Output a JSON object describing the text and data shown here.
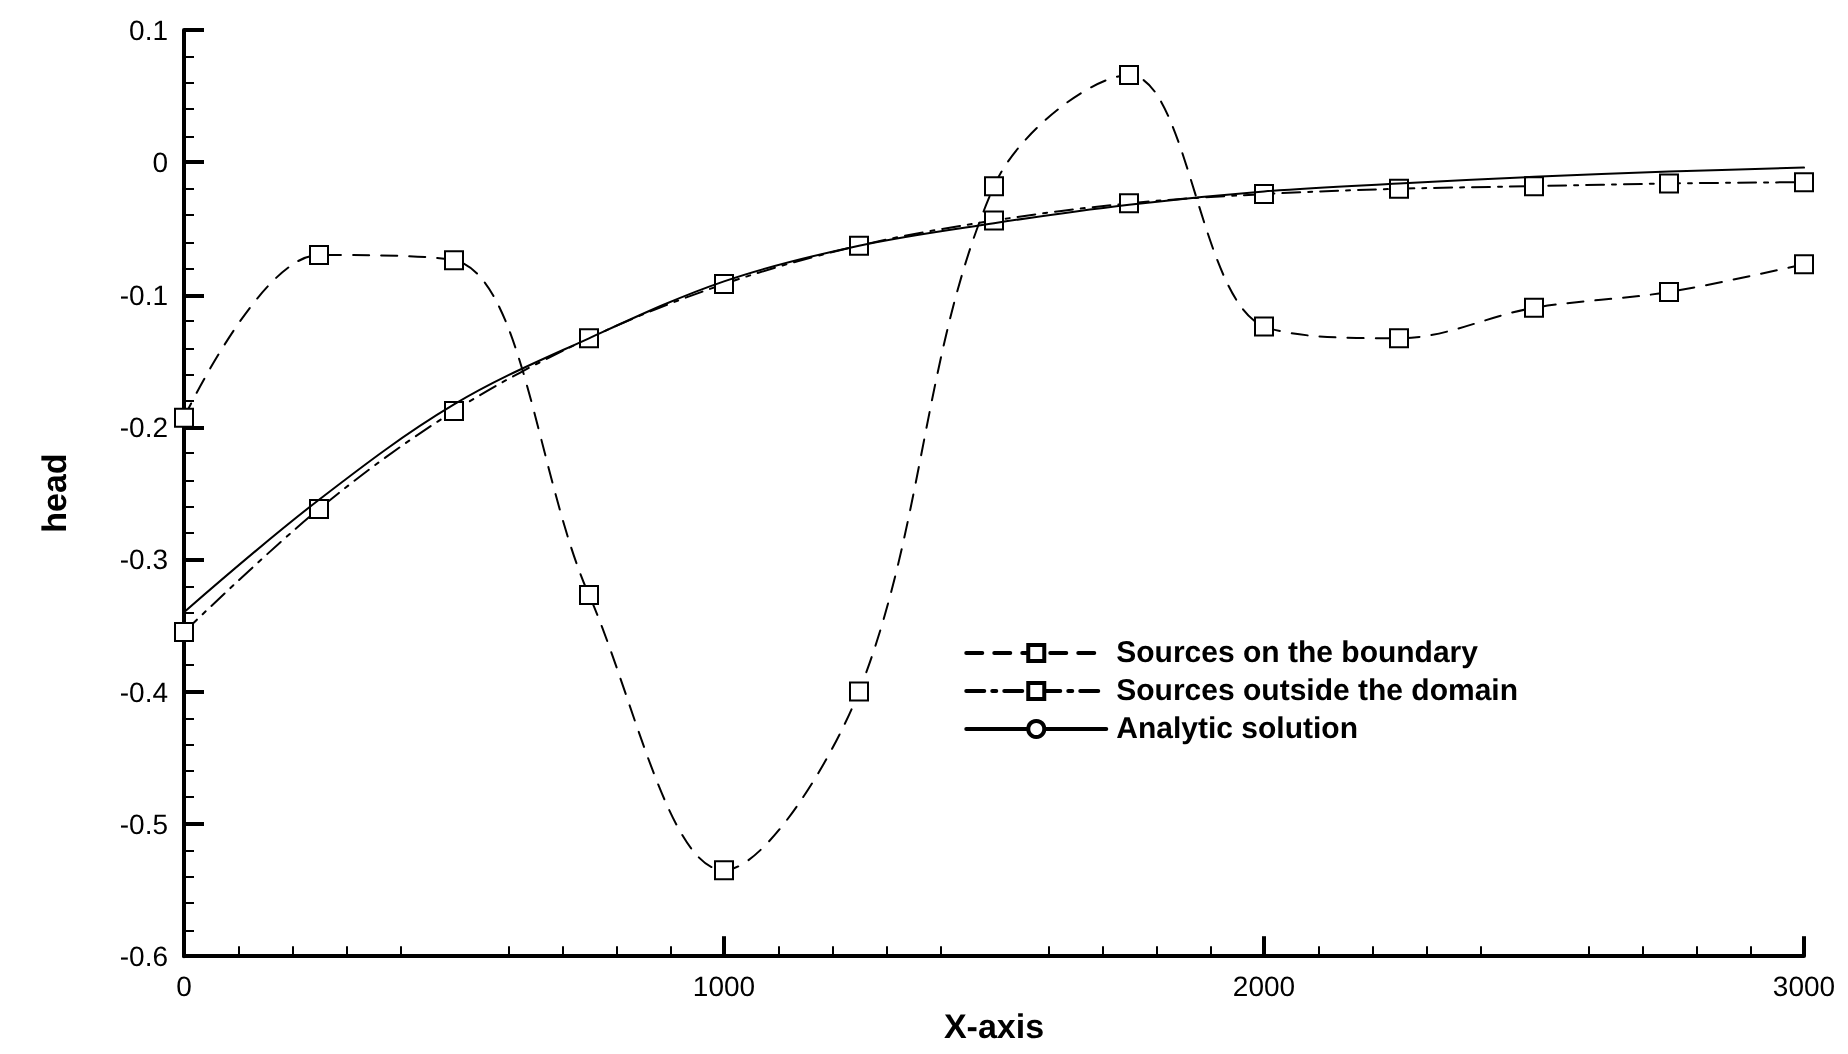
{
  "chart_data": {
    "type": "line",
    "xlabel": "X-axis",
    "ylabel": "head",
    "x": [
      0,
      250,
      500,
      750,
      1000,
      1250,
      1500,
      1750,
      2000,
      2250,
      2500,
      2750,
      3000
    ],
    "series": [
      {
        "name": "Sources on the boundary",
        "color": "#000000",
        "marker": "square",
        "line_style": "dashed",
        "values": [
          -0.193,
          -0.07,
          -0.074,
          -0.327,
          -0.535,
          -0.4,
          -0.018,
          0.066,
          -0.124,
          -0.133,
          -0.11,
          -0.098,
          -0.077
        ]
      },
      {
        "name": "Sources outside the domain",
        "color": "#000000",
        "marker": "square",
        "line_style": "dashdot",
        "values": [
          -0.355,
          -0.262,
          -0.188,
          -0.133,
          -0.092,
          -0.063,
          -0.044,
          -0.031,
          -0.024,
          -0.02,
          -0.018,
          -0.016,
          -0.015
        ]
      },
      {
        "name": "Analytic solution",
        "color": "#000000",
        "marker": "none",
        "line_style": "solid",
        "values": [
          -0.34,
          -0.255,
          -0.183,
          -0.133,
          -0.09,
          -0.063,
          -0.046,
          -0.032,
          -0.022,
          -0.016,
          -0.011,
          -0.007,
          -0.004
        ]
      }
    ],
    "xlim": [
      0,
      3000
    ],
    "xticks": [
      0,
      1000,
      2000,
      3000
    ],
    "ylim": [
      -0.6,
      0.1
    ],
    "yticks": [
      -0.6,
      -0.5,
      -0.4,
      -0.3,
      -0.2,
      -0.1,
      0,
      0.1
    ],
    "grid": false,
    "legend": "bottom right"
  }
}
